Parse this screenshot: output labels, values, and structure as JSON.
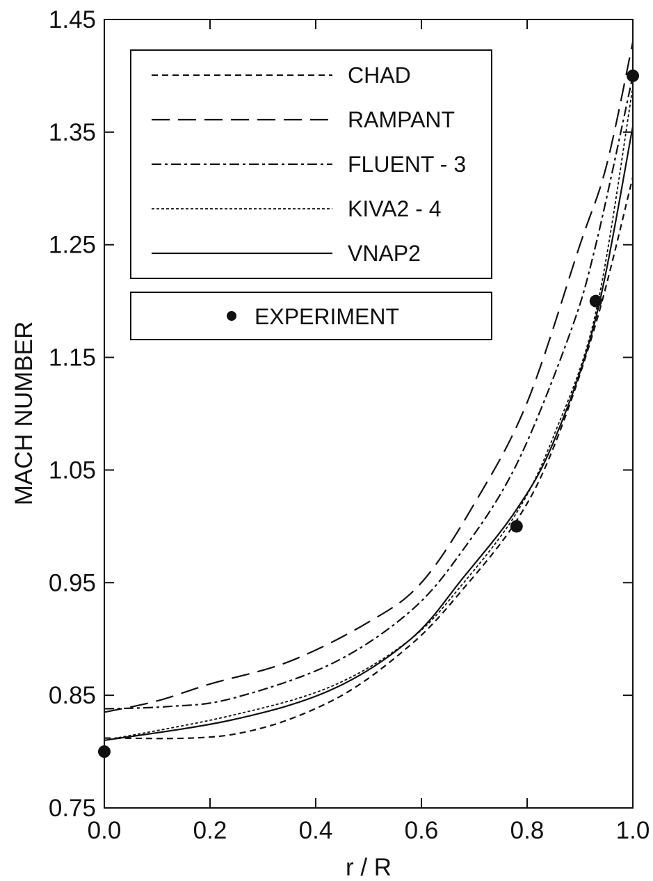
{
  "chart_data": {
    "type": "line",
    "xlabel": "r / R",
    "ylabel": "MACH NUMBER",
    "xlim": [
      0.0,
      1.0
    ],
    "ylim": [
      0.75,
      1.45
    ],
    "xticks": [
      "0.0",
      "0.2",
      "0.4",
      "0.6",
      "0.8",
      "1.0"
    ],
    "yticks": [
      "0.75",
      "0.85",
      "0.95",
      "1.05",
      "1.15",
      "1.25",
      "1.35",
      "1.45"
    ],
    "grid": false,
    "legend_placement": "top-left",
    "series": [
      {
        "name": "CHAD",
        "style": "short-dash",
        "x": [
          0.0,
          0.24,
          0.43,
          0.58,
          0.68,
          0.78,
          0.85,
          0.93,
          1.0
        ],
        "y": [
          0.812,
          0.815,
          0.845,
          0.895,
          0.945,
          1.005,
          1.07,
          1.18,
          1.31
        ]
      },
      {
        "name": "RAMPANT",
        "style": "long-dash",
        "x": [
          0.0,
          0.1,
          0.2,
          0.35,
          0.5,
          0.6,
          0.7,
          0.8,
          0.9,
          0.95,
          1.0
        ],
        "y": [
          0.835,
          0.845,
          0.86,
          0.88,
          0.915,
          0.95,
          1.02,
          1.11,
          1.25,
          1.32,
          1.43
        ]
      },
      {
        "name": "FLUENT - 3",
        "style": "dash-dot",
        "x": [
          0.0,
          0.12,
          0.24,
          0.43,
          0.58,
          0.68,
          0.78,
          0.88,
          0.93,
          1.0
        ],
        "y": [
          0.838,
          0.84,
          0.847,
          0.878,
          0.925,
          0.98,
          1.055,
          1.17,
          1.25,
          1.4
        ]
      },
      {
        "name": "KIVA2 - 4",
        "style": "dotted",
        "x": [
          0.0,
          0.24,
          0.43,
          0.58,
          0.68,
          0.78,
          0.85,
          0.93,
          1.0
        ],
        "y": [
          0.81,
          0.832,
          0.858,
          0.9,
          0.95,
          1.012,
          1.08,
          1.19,
          1.39
        ]
      },
      {
        "name": "VNAP2",
        "style": "solid",
        "x": [
          0.0,
          0.24,
          0.43,
          0.58,
          0.68,
          0.78,
          0.85,
          0.93,
          1.0
        ],
        "y": [
          0.81,
          0.828,
          0.855,
          0.9,
          0.955,
          1.015,
          1.075,
          1.185,
          1.355
        ]
      }
    ],
    "experiment": {
      "name": "EXPERIMENT",
      "x": [
        0.0,
        0.78,
        0.93,
        1.0
      ],
      "y": [
        0.8,
        1.0,
        1.2,
        1.4
      ]
    }
  }
}
